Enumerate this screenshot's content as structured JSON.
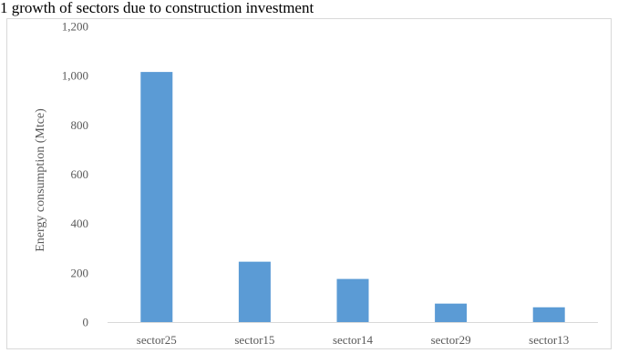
{
  "chart_data": {
    "type": "bar",
    "title": "1 growth of sectors due to construction investment",
    "xlabel": "",
    "ylabel": "Energy consumption (Mtce)",
    "categories": [
      "sector25",
      "sector15",
      "sector14",
      "sector29",
      "sector13"
    ],
    "values": [
      1015,
      245,
      175,
      75,
      60
    ],
    "ylim": [
      0,
      1200
    ],
    "yticks": [
      "0",
      "200",
      "400",
      "600",
      "800",
      "1,000",
      "1,200"
    ],
    "ytick_values": [
      0,
      200,
      400,
      600,
      800,
      1000,
      1200
    ],
    "grid": false,
    "legend": "none",
    "bar_color": "#5b9bd5",
    "axis_color": "#d9d9d9",
    "label_color": "#595959"
  }
}
